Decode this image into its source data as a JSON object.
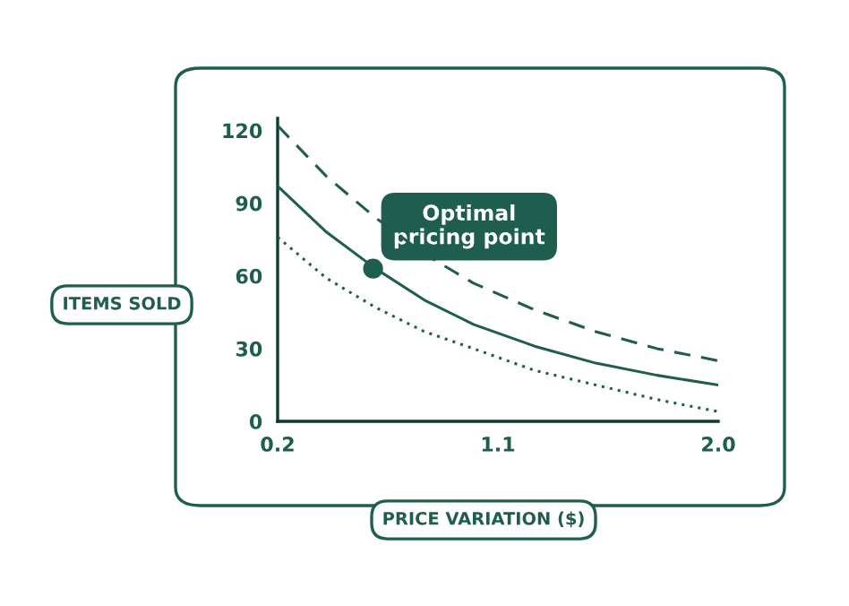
{
  "chart_data": {
    "type": "line",
    "xlabel": "PRICE VARIATION ($)",
    "ylabel": "ITEMS SOLD",
    "xlim": [
      0.2,
      2.0
    ],
    "xticks": [
      {
        "value": 0.2,
        "label": "0.2"
      },
      {
        "value": 1.1,
        "label": "1.1"
      },
      {
        "value": 2.0,
        "label": "2.0"
      }
    ],
    "ylim": [
      0,
      125
    ],
    "yticks": [
      0,
      30,
      60,
      90,
      120
    ],
    "grid": false,
    "legend": false,
    "marker": "none",
    "x": [
      0.2,
      0.4,
      0.6,
      0.8,
      1.0,
      1.25,
      1.5,
      1.75,
      2.0
    ],
    "series": [
      {
        "color": "#1f5e4f",
        "line_style": "dashed",
        "values": [
          122,
          101,
          84,
          69,
          57,
          46,
          37,
          30,
          25
        ]
      },
      {
        "color": "#1f5e4f",
        "line_style": "solid",
        "values": [
          97,
          78,
          63,
          50,
          40,
          31,
          24,
          19,
          15
        ]
      },
      {
        "color": "#1f5e4f",
        "line_style": "dotted",
        "values": [
          76,
          59,
          47,
          37,
          30,
          21,
          15,
          9,
          4
        ]
      }
    ],
    "annotations": [
      {
        "text": "Optimal\npricing point",
        "x": 0.59,
        "y": 63
      }
    ]
  }
}
